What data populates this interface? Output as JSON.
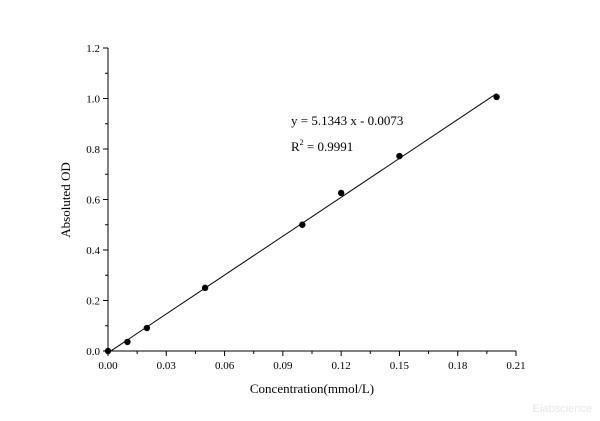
{
  "chart_data": {
    "type": "scatter",
    "xlabel": "Concentration(mmol/L)",
    "ylabel": "Absoluted OD",
    "xlim": [
      0,
      0.21
    ],
    "ylim": [
      0,
      1.2
    ],
    "xticks": [
      "0.00",
      "0.03",
      "0.06",
      "0.09",
      "0.12",
      "0.15",
      "0.18",
      "0.21"
    ],
    "yticks": [
      "0.0",
      "0.2",
      "0.4",
      "0.6",
      "0.8",
      "1.0",
      "1.2"
    ],
    "grid": false,
    "points": [
      {
        "x": 0,
        "y": 0
      },
      {
        "x": 0.01,
        "y": 0.036
      },
      {
        "x": 0.02,
        "y": 0.091
      },
      {
        "x": 0.05,
        "y": 0.25
      },
      {
        "x": 0.1,
        "y": 0.5
      },
      {
        "x": 0.12,
        "y": 0.626
      },
      {
        "x": 0.15,
        "y": 0.772
      },
      {
        "x": 0.2,
        "y": 1.006
      }
    ],
    "fit": {
      "slope": 5.1343,
      "intercept": -0.0073
    },
    "annotations": {
      "equation": "y = 5.1343 x - 0.0073",
      "r2_prefix": "R",
      "r2_sup": "2",
      "r2_value": " = 0.9991"
    },
    "colors": {
      "points": "#000000",
      "line": "#000000"
    }
  },
  "watermark": "Elabscience"
}
